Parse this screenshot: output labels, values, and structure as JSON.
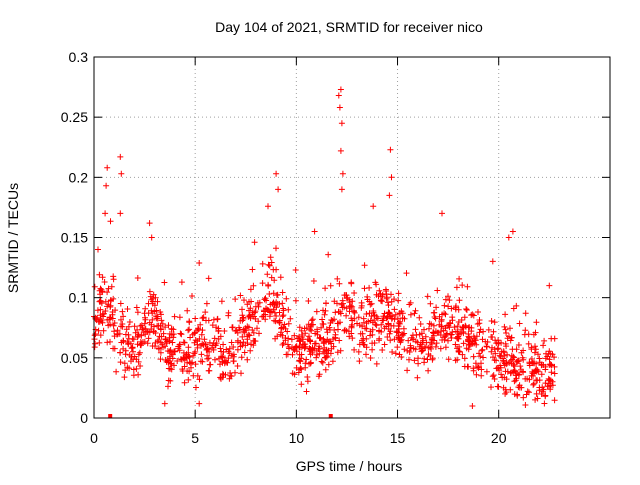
{
  "chart_data": {
    "type": "scatter",
    "title": "Day 104 of 2021, SRMTID for receiver nico",
    "xlabel": "GPS time / hours",
    "ylabel": "SRMTID / TECUs",
    "xlim": [
      0,
      25.5
    ],
    "ylim": [
      0,
      0.3
    ],
    "xticks": [
      0,
      5,
      10,
      15,
      20
    ],
    "xtick_labels": [
      "0",
      "5",
      "10",
      "15",
      "20"
    ],
    "yticks": [
      0,
      0.05,
      0.1,
      0.15,
      0.2,
      0.25,
      0.3
    ],
    "ytick_labels": [
      "0",
      "0.05",
      "0.1",
      "0.15",
      "0.2",
      "0.25",
      "0.3"
    ],
    "grid": true,
    "marker": "plus",
    "color": "#ff0000",
    "baseline_markers_hours": [
      0.8,
      11.7
    ],
    "time_start": 0.0,
    "time_end": 22.8,
    "sample_count": 1400,
    "trend": [
      [
        0.0,
        0.085
      ],
      [
        0.5,
        0.095
      ],
      [
        1.0,
        0.08
      ],
      [
        1.5,
        0.06
      ],
      [
        2.0,
        0.055
      ],
      [
        2.5,
        0.075
      ],
      [
        3.0,
        0.08
      ],
      [
        3.5,
        0.06
      ],
      [
        4.0,
        0.055
      ],
      [
        4.5,
        0.05
      ],
      [
        5.0,
        0.058
      ],
      [
        5.5,
        0.06
      ],
      [
        6.0,
        0.062
      ],
      [
        6.5,
        0.05
      ],
      [
        7.0,
        0.058
      ],
      [
        7.5,
        0.07
      ],
      [
        8.0,
        0.085
      ],
      [
        8.5,
        0.1
      ],
      [
        9.0,
        0.095
      ],
      [
        9.5,
        0.075
      ],
      [
        10.0,
        0.06
      ],
      [
        10.5,
        0.055
      ],
      [
        11.0,
        0.065
      ],
      [
        11.5,
        0.06
      ],
      [
        12.0,
        0.08
      ],
      [
        12.5,
        0.09
      ],
      [
        13.0,
        0.075
      ],
      [
        13.5,
        0.075
      ],
      [
        14.0,
        0.085
      ],
      [
        14.5,
        0.085
      ],
      [
        15.0,
        0.08
      ],
      [
        15.5,
        0.07
      ],
      [
        16.0,
        0.065
      ],
      [
        16.5,
        0.06
      ],
      [
        17.0,
        0.08
      ],
      [
        17.5,
        0.075
      ],
      [
        18.0,
        0.07
      ],
      [
        18.5,
        0.065
      ],
      [
        19.0,
        0.06
      ],
      [
        19.5,
        0.055
      ],
      [
        20.0,
        0.05
      ],
      [
        20.5,
        0.045
      ],
      [
        21.0,
        0.04
      ],
      [
        21.5,
        0.042
      ],
      [
        22.0,
        0.04
      ],
      [
        22.8,
        0.04
      ]
    ],
    "spikes": [
      {
        "x": 0.2,
        "y": 0.14
      },
      {
        "x": 0.55,
        "y": 0.17
      },
      {
        "x": 0.6,
        "y": 0.193
      },
      {
        "x": 0.65,
        "y": 0.208
      },
      {
        "x": 1.3,
        "y": 0.217
      },
      {
        "x": 1.35,
        "y": 0.203
      },
      {
        "x": 1.3,
        "y": 0.17
      },
      {
        "x": 2.75,
        "y": 0.162
      },
      {
        "x": 2.85,
        "y": 0.15
      },
      {
        "x": 9.0,
        "y": 0.203
      },
      {
        "x": 9.1,
        "y": 0.19
      },
      {
        "x": 8.6,
        "y": 0.176
      },
      {
        "x": 10.9,
        "y": 0.155
      },
      {
        "x": 12.1,
        "y": 0.268
      },
      {
        "x": 12.2,
        "y": 0.273
      },
      {
        "x": 12.15,
        "y": 0.258
      },
      {
        "x": 12.25,
        "y": 0.245
      },
      {
        "x": 12.2,
        "y": 0.222
      },
      {
        "x": 12.3,
        "y": 0.203
      },
      {
        "x": 12.25,
        "y": 0.19
      },
      {
        "x": 13.8,
        "y": 0.176
      },
      {
        "x": 14.65,
        "y": 0.223
      },
      {
        "x": 14.7,
        "y": 0.2
      },
      {
        "x": 14.6,
        "y": 0.185
      },
      {
        "x": 17.2,
        "y": 0.17
      },
      {
        "x": 20.7,
        "y": 0.155
      },
      {
        "x": 20.5,
        "y": 0.15
      },
      {
        "x": 22.5,
        "y": 0.11
      }
    ],
    "lows": [
      {
        "x": 3.5,
        "y": 0.012
      },
      {
        "x": 5.2,
        "y": 0.012
      },
      {
        "x": 10.5,
        "y": 0.022
      },
      {
        "x": 18.7,
        "y": 0.01
      },
      {
        "x": 21.8,
        "y": 0.015
      },
      {
        "x": 22.3,
        "y": 0.018
      }
    ]
  }
}
